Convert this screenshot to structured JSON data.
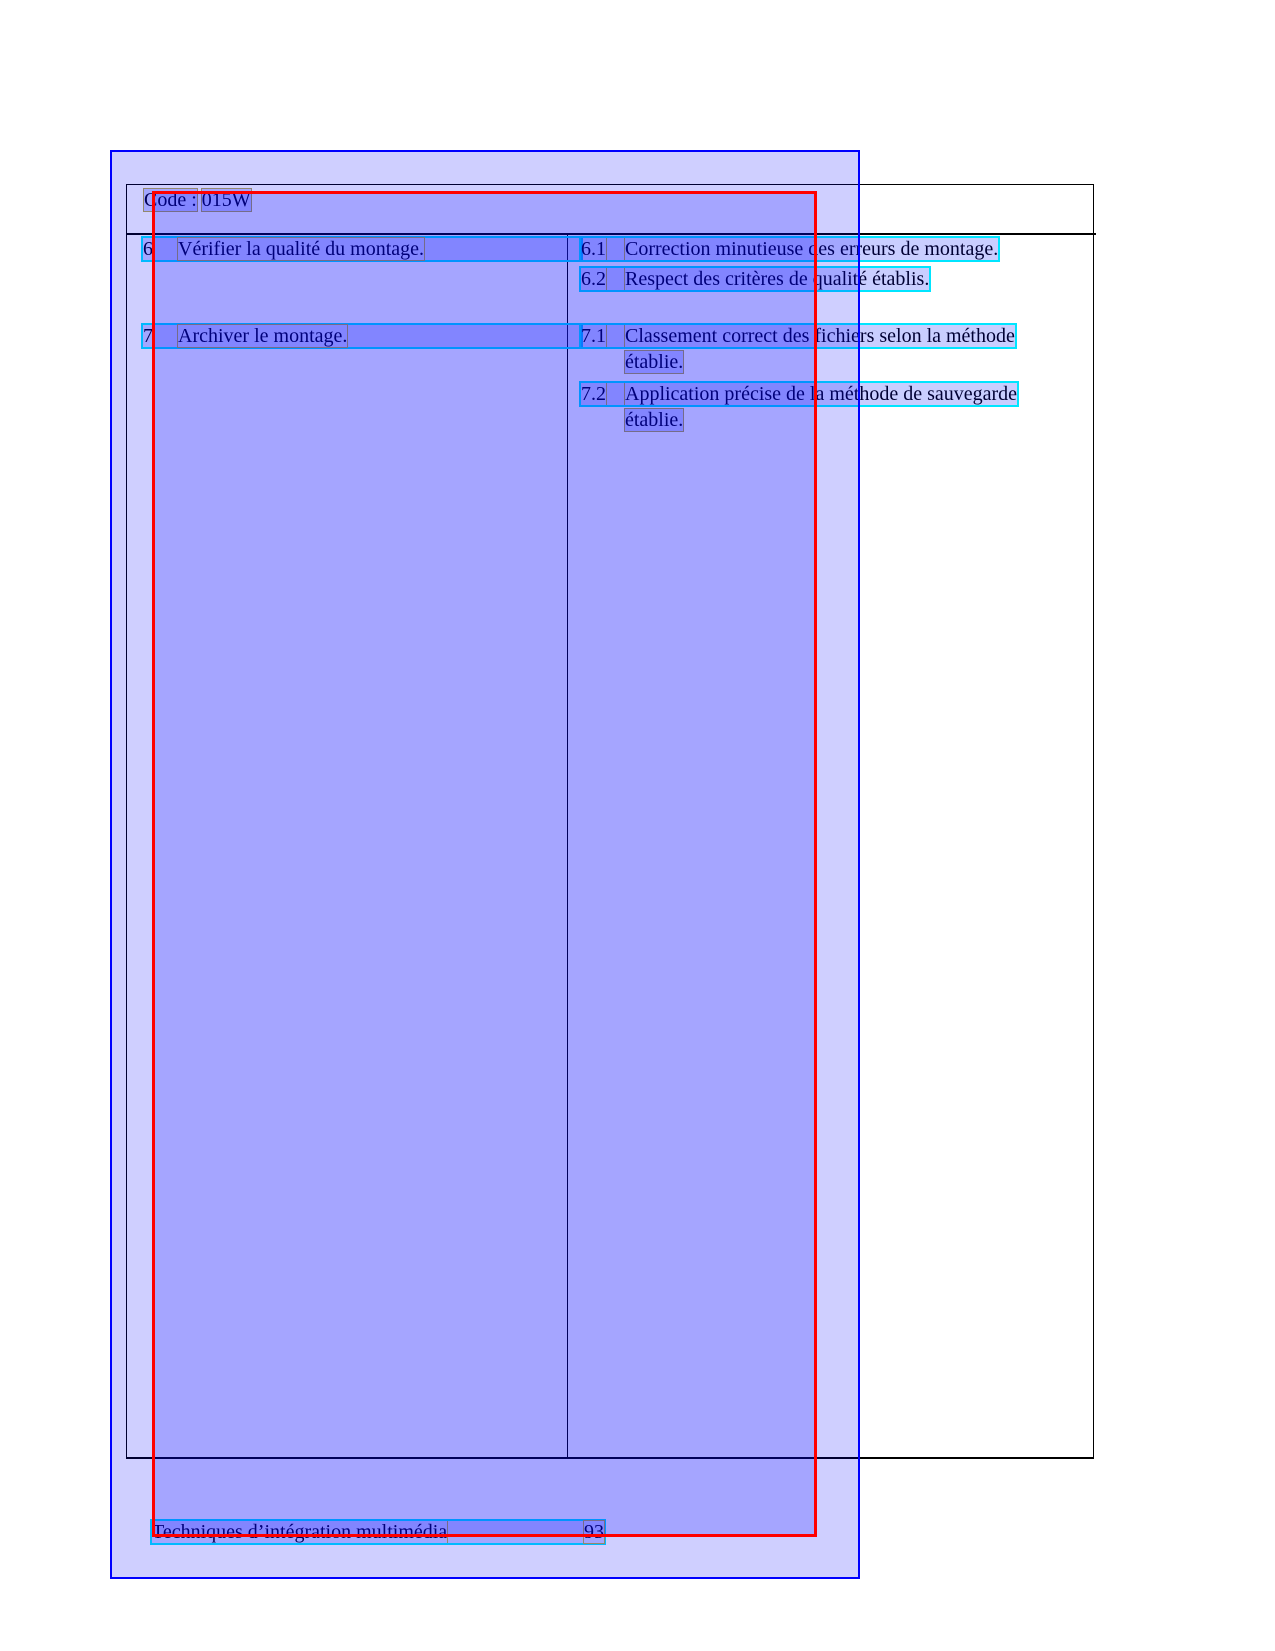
{
  "header": {
    "code_label": "Code :",
    "code_value": "015W"
  },
  "rows": [
    {
      "number": "6",
      "element": "Vérifier la qualité du montage.",
      "criteria": [
        {
          "number": "6.1",
          "lines": [
            "Correction minutieuse des erreurs de montage."
          ]
        },
        {
          "number": "6.2",
          "lines": [
            "Respect des critères de qualité établis."
          ]
        }
      ]
    },
    {
      "number": "7",
      "element": "Archiver le montage.",
      "criteria": [
        {
          "number": "7.1",
          "lines": [
            "Classement correct des fichiers selon la méthode",
            "établie."
          ]
        },
        {
          "number": "7.2",
          "lines": [
            "Application précise de la méthode de sauvegarde",
            "établie."
          ]
        }
      ]
    }
  ],
  "footer": {
    "title": "Techniques d’intégration multimédia",
    "page_number": "93"
  },
  "colors": {
    "overlay_blue": "#0000ff",
    "overlay_red": "#ff0000",
    "line_box": "#00e5ff"
  }
}
